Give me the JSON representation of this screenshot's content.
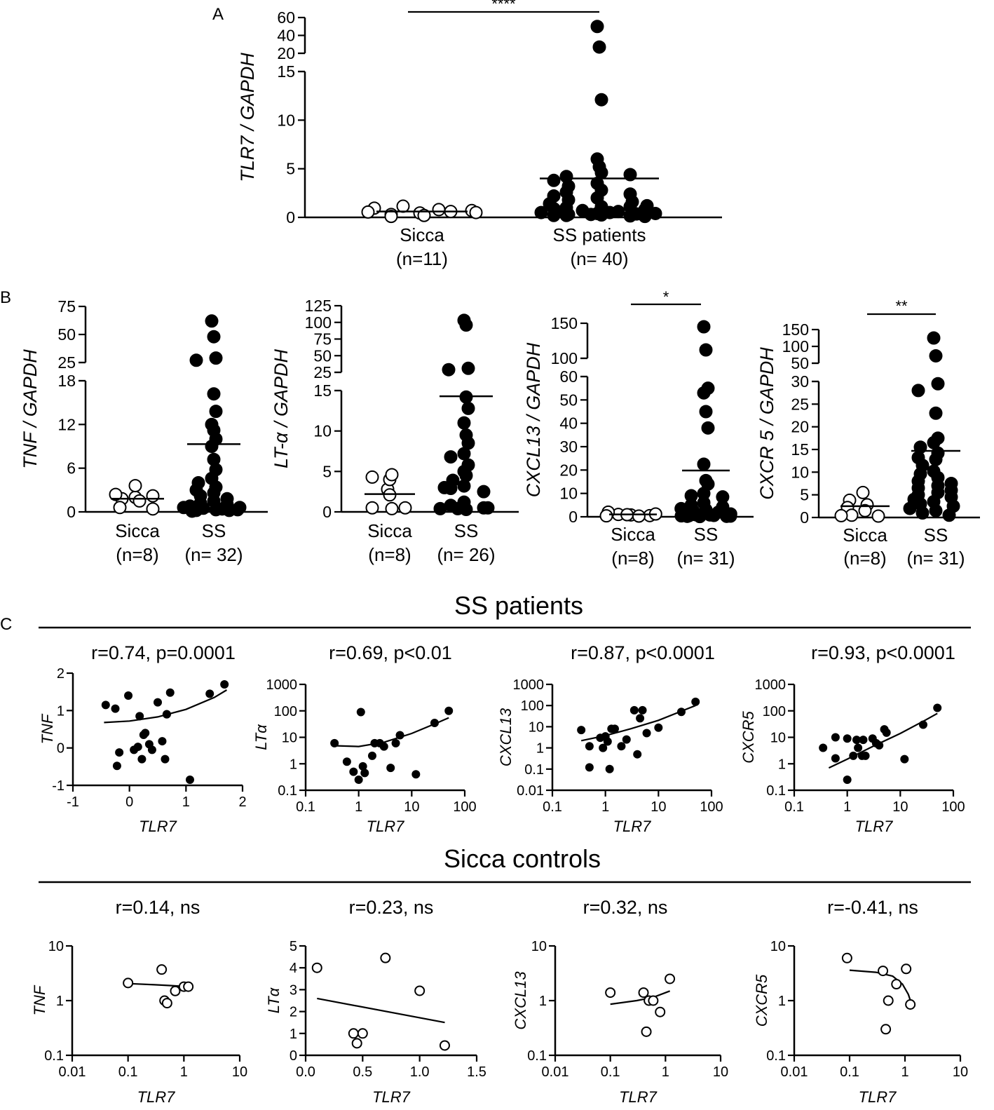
{
  "panel_labels": {
    "A": "A",
    "B": "B",
    "C": "C"
  },
  "sections": {
    "ss_title": "SS patients",
    "sicca_title": "Sicca controls"
  },
  "chart_data": [
    {
      "id": "A",
      "type": "scatter",
      "subtype": "dot-plot-mean",
      "ylabel": "TLR7 / GAPDH",
      "ytick_labels": [
        "0",
        "5",
        "10",
        "15",
        "20",
        "40",
        "60"
      ],
      "ytick_values": [
        0,
        5,
        10,
        15,
        20,
        40,
        60
      ],
      "y_break": {
        "low_max": 15,
        "high_min": 20,
        "high_max": 60
      },
      "significance": "****",
      "groups": [
        {
          "name": "Sicca",
          "n_label": "(n=11)",
          "marker": "open",
          "mean": 0.6,
          "values": [
            0.45,
            0.3,
            0.2,
            0.6,
            0.95,
            0.7,
            1.15,
            0.8,
            0.55,
            0.5,
            0.1
          ]
        },
        {
          "name": "SS patients",
          "n_label": "(n= 40)",
          "marker": "filled",
          "mean": 4.0,
          "values": [
            50,
            27,
            12.1,
            6.0,
            5.2,
            4.6,
            4.2,
            4.4,
            3.8,
            3.5,
            3.2,
            2.8,
            2.6,
            2.4,
            2.2,
            2.0,
            1.8,
            1.6,
            1.4,
            1.2,
            1.1,
            1.0,
            1.1,
            0.9,
            0.8,
            0.7,
            0.6,
            0.5,
            0.4,
            0.6,
            0.35,
            0.3,
            0.25,
            0.2,
            0.15,
            0.5,
            0.4,
            0.3,
            0.2,
            0.1
          ]
        }
      ]
    },
    {
      "id": "B1",
      "type": "scatter",
      "subtype": "dot-plot-mean",
      "ylabel": "TNF / GAPDH",
      "ytick_labels": [
        "0",
        "6",
        "12",
        "18",
        "25",
        "50",
        "75"
      ],
      "ytick_values": [
        0,
        6,
        12,
        18,
        25,
        50,
        75
      ],
      "y_break": {
        "low_max": 18,
        "high_min": 25,
        "high_max": 75
      },
      "significance": "",
      "groups": [
        {
          "name": "Sicca",
          "n_label": "(n=8)",
          "marker": "open",
          "mean": 1.8,
          "values": [
            2.0,
            1.8,
            1.5,
            3.6,
            2.2,
            2.4,
            0.6,
            0.4
          ]
        },
        {
          "name": "SS",
          "n_label": "(n= 32)",
          "marker": "filled",
          "mean": 9.3,
          "values": [
            62,
            48,
            29,
            27,
            16.2,
            13.8,
            12.0,
            11.2,
            10.0,
            9.0,
            7.2,
            5.8,
            4.6,
            4.0,
            3.4,
            3.0,
            2.6,
            2.2,
            1.8,
            1.5,
            1.2,
            1.0,
            0.8,
            0.6,
            0.5,
            0.4,
            0.3,
            0.2,
            0.2,
            0.1,
            0.6,
            0.3
          ]
        }
      ]
    },
    {
      "id": "B2",
      "type": "scatter",
      "subtype": "dot-plot-mean",
      "ylabel": "LT-α / GAPDH",
      "ytick_labels": [
        "0",
        "5",
        "10",
        "15",
        "25",
        "50",
        "75",
        "100",
        "125"
      ],
      "ytick_values": [
        0,
        5,
        10,
        15,
        25,
        50,
        75,
        100,
        125
      ],
      "y_break": {
        "low_max": 15,
        "high_min": 25,
        "high_max": 125
      },
      "significance": "",
      "groups": [
        {
          "name": "Sicca",
          "n_label": "(n=8)",
          "marker": "open",
          "mean": 2.2,
          "values": [
            2.8,
            4.0,
            4.6,
            4.3,
            2.1,
            0.4,
            0.5,
            0.5
          ]
        },
        {
          "name": "SS",
          "n_label": "(n= 26)",
          "marker": "filled",
          "mean": 14.3,
          "values": [
            103,
            96,
            31,
            29,
            14.2,
            12.8,
            11.0,
            9.5,
            8.5,
            7.2,
            6.8,
            5.8,
            5.0,
            4.5,
            3.9,
            3.2,
            2.9,
            2.5,
            1.2,
            0.8,
            0.5,
            0.4,
            0.3,
            3.0,
            0.5,
            0.4
          ]
        }
      ]
    },
    {
      "id": "B3",
      "type": "scatter",
      "subtype": "dot-plot-mean",
      "ylabel": "CXCL13 / GAPDH",
      "ytick_labels": [
        "0",
        "10",
        "20",
        "30",
        "40",
        "50",
        "60",
        "100",
        "150"
      ],
      "ytick_values": [
        0,
        10,
        20,
        30,
        40,
        50,
        60,
        100,
        150
      ],
      "y_break": {
        "low_max": 60,
        "high_min": 100,
        "high_max": 150
      },
      "significance": "*",
      "groups": [
        {
          "name": "Sicca",
          "n_label": "(n=8)",
          "marker": "open",
          "mean": 1.0,
          "values": [
            0.8,
            1.0,
            0.5,
            2.0,
            1.2,
            0.9,
            0.3,
            0.4
          ]
        },
        {
          "name": "SS",
          "n_label": "(n= 31)",
          "marker": "filled",
          "mean": 19.8,
          "values": [
            145,
            112,
            55,
            53,
            45,
            38,
            22.5,
            15.5,
            14.0,
            10.0,
            9.0,
            8.5,
            6.0,
            5.0,
            4.2,
            3.5,
            3.0,
            2.5,
            2.0,
            1.6,
            1.2,
            0.9,
            0.6,
            0.4,
            0.3,
            0.2,
            0.2,
            0.1,
            0.8,
            1.5,
            0.5
          ]
        }
      ]
    },
    {
      "id": "B4",
      "type": "scatter",
      "subtype": "dot-plot-mean",
      "ylabel": "CXCR 5 / GAPDH",
      "ytick_labels": [
        "0",
        "5",
        "10",
        "15",
        "20",
        "25",
        "30",
        "50",
        "100",
        "150"
      ],
      "ytick_values": [
        0,
        5,
        10,
        15,
        20,
        25,
        30,
        50,
        100,
        150
      ],
      "y_break": {
        "low_max": 30,
        "high_min": 50,
        "high_max": 150
      },
      "significance": "**",
      "groups": [
        {
          "name": "Sicca",
          "n_label": "(n=8)",
          "marker": "open",
          "mean": 2.5,
          "values": [
            5.5,
            3.8,
            2.8,
            2.2,
            1.5,
            0.5,
            0.3,
            0.4
          ]
        },
        {
          "name": "SS",
          "n_label": "(n= 31)",
          "marker": "filled",
          "mean": 14.7,
          "values": [
            125,
            72,
            29.5,
            28.0,
            23.0,
            17.5,
            16.5,
            15.5,
            14.2,
            13.2,
            12.8,
            11.5,
            10.2,
            9.6,
            8.8,
            8.0,
            7.5,
            7.0,
            6.5,
            6.0,
            5.5,
            5.0,
            4.5,
            4.0,
            3.5,
            3.0,
            2.5,
            2.0,
            1.5,
            1.0,
            0.5
          ]
        }
      ]
    },
    {
      "id": "C1",
      "type": "scatter",
      "group": "SS patients",
      "stat": "r=0.74, p=0.0001",
      "xlabel": "TLR7",
      "ylabel": "TNF",
      "xscale": "linear",
      "yscale": "linear",
      "xlim": [
        -1,
        2
      ],
      "ylim": [
        -1,
        2
      ],
      "xtick_labels": [
        "-1",
        "0",
        "1",
        "2"
      ],
      "ytick_labels": [
        "-1",
        "0",
        "1",
        "2"
      ],
      "marker": "filled",
      "x": [
        -0.42,
        -0.25,
        -0.18,
        -0.02,
        0.08,
        0.15,
        0.18,
        0.25,
        0.22,
        0.28,
        0.35,
        0.4,
        0.5,
        0.58,
        0.63,
        0.66,
        0.72,
        1.07,
        1.42,
        1.68,
        0.66,
        -0.22
      ],
      "y": [
        1.15,
        1.05,
        -0.12,
        1.4,
        -0.05,
        0.03,
        0.85,
        0.35,
        -0.3,
        0.4,
        0.1,
        -0.05,
        1.22,
        0.18,
        -0.3,
        0.9,
        1.48,
        -0.85,
        1.45,
        1.7,
        0.9,
        -0.48
      ],
      "fit_x": [
        -0.45,
        0.0,
        0.5,
        1.0,
        1.5,
        1.72
      ],
      "fit_y": [
        0.68,
        0.72,
        0.83,
        1.03,
        1.35,
        1.55
      ]
    },
    {
      "id": "C2",
      "type": "scatter",
      "group": "SS patients",
      "stat": "r=0.69, p<0.01",
      "xlabel": "TLR7",
      "ylabel": "LTα",
      "xscale": "log",
      "yscale": "log",
      "xlim": [
        0.1,
        100
      ],
      "ylim": [
        0.1,
        1000
      ],
      "xtick_labels": [
        "0.1",
        "1",
        "10",
        "100"
      ],
      "ytick_labels": [
        "0.1",
        "1",
        "10",
        "100",
        "1000"
      ],
      "marker": "filled",
      "x": [
        0.35,
        0.6,
        0.8,
        1.0,
        1.1,
        1.2,
        1.3,
        1.8,
        2.0,
        2.5,
        3.0,
        4.0,
        5.0,
        6.0,
        12.0,
        27.0,
        50.0
      ],
      "y": [
        6.0,
        1.2,
        0.5,
        0.25,
        90.0,
        0.8,
        0.45,
        2.0,
        6.0,
        6.0,
        4.5,
        0.7,
        6.0,
        12.0,
        0.4,
        35.0,
        100.0
      ],
      "fit_x": [
        0.35,
        1.0,
        3.0,
        10.0,
        30.0,
        50.0
      ],
      "fit_y": [
        4.8,
        4.5,
        6.5,
        14.0,
        35.0,
        55.0
      ]
    },
    {
      "id": "C3",
      "type": "scatter",
      "group": "SS patients",
      "stat": "r=0.87, p<0.0001",
      "xlabel": "TLR7",
      "ylabel": "CXCL13",
      "xscale": "log",
      "yscale": "log",
      "xlim": [
        0.1,
        100
      ],
      "ylim": [
        0.01,
        1000
      ],
      "xtick_labels": [
        "0.1",
        "1",
        "10",
        "100"
      ],
      "ytick_labels": [
        "0.01",
        "0.1",
        "1",
        "10",
        "100",
        "1000"
      ],
      "marker": "filled",
      "x": [
        0.35,
        0.5,
        0.5,
        0.8,
        0.9,
        1.0,
        1.1,
        1.2,
        1.3,
        1.5,
        2.0,
        2.5,
        3.5,
        4.0,
        4.5,
        5.0,
        6.0,
        10.0,
        27.0,
        50.0
      ],
      "y": [
        7.0,
        1.2,
        0.12,
        3.0,
        1.0,
        3.5,
        2.0,
        0.1,
        8.0,
        8.0,
        1.2,
        2.5,
        60.0,
        0.5,
        25.0,
        60.0,
        5.0,
        9.0,
        50.0,
        150.0
      ],
      "fit_x": [
        0.35,
        1.0,
        3.0,
        10.0,
        30.0,
        50.0
      ],
      "fit_y": [
        2.2,
        3.8,
        8.0,
        20.0,
        60.0,
        100.0
      ]
    },
    {
      "id": "C4",
      "type": "scatter",
      "group": "SS patients",
      "stat": "r=0.93, p<0.0001",
      "xlabel": "TLR7",
      "ylabel": "CXCR5",
      "xscale": "log",
      "yscale": "log",
      "xlim": [
        0.1,
        100
      ],
      "ylim": [
        0.1,
        1000
      ],
      "xtick_labels": [
        "0.1",
        "1",
        "10",
        "100"
      ],
      "ytick_labels": [
        "0.1",
        "1",
        "10",
        "100",
        "1000"
      ],
      "marker": "filled",
      "x": [
        0.35,
        0.6,
        0.6,
        1.0,
        1.0,
        1.3,
        1.5,
        1.6,
        1.9,
        2.0,
        2.2,
        3.0,
        3.5,
        4.0,
        5.0,
        5.5,
        12.0,
        27.0,
        50.0
      ],
      "y": [
        4.0,
        10.0,
        1.6,
        9.0,
        0.25,
        2.0,
        8.0,
        4.0,
        2.0,
        8.0,
        2.0,
        9.0,
        6.0,
        5.0,
        20.0,
        15.0,
        1.5,
        30.0,
        130.0
      ],
      "fit_x": [
        0.45,
        1.0,
        3.0,
        10.0,
        30.0,
        50.0
      ],
      "fit_y": [
        0.7,
        1.5,
        4.5,
        14.0,
        45.0,
        80.0
      ]
    },
    {
      "id": "D1",
      "type": "scatter",
      "group": "Sicca controls",
      "stat": "r=0.14, ns",
      "xlabel": "TLR7",
      "ylabel": "TNF",
      "xscale": "log",
      "yscale": "log",
      "xlim": [
        0.01,
        10
      ],
      "ylim": [
        0.1,
        10
      ],
      "xtick_labels": [
        "0.01",
        "0.1",
        "1",
        "10"
      ],
      "ytick_labels": [
        "0.1",
        "1",
        "10"
      ],
      "marker": "open",
      "x": [
        0.1,
        0.4,
        0.45,
        0.5,
        0.7,
        1.0,
        1.2
      ],
      "y": [
        2.1,
        3.7,
        1.0,
        0.9,
        1.5,
        1.8,
        1.8
      ],
      "fit_x": [
        0.1,
        0.3,
        0.6,
        1.2
      ],
      "fit_y": [
        2.05,
        1.95,
        1.88,
        1.8
      ]
    },
    {
      "id": "D2",
      "type": "scatter",
      "group": "Sicca controls",
      "stat": "r=0.23, ns",
      "xlabel": "TLR7",
      "ylabel": "LTα",
      "xscale": "linear",
      "yscale": "linear",
      "xlim": [
        0,
        1.5
      ],
      "ylim": [
        0,
        5
      ],
      "xtick_labels": [
        "0.0",
        "0.5",
        "1.0",
        "1.5"
      ],
      "ytick_labels": [
        "0",
        "1",
        "2",
        "3",
        "4",
        "5"
      ],
      "marker": "open",
      "x": [
        0.1,
        0.42,
        0.45,
        0.5,
        0.7,
        1.0,
        1.22
      ],
      "y": [
        4.0,
        1.0,
        0.55,
        1.0,
        4.45,
        2.95,
        0.45
      ],
      "fit_x": [
        0.1,
        1.22
      ],
      "fit_y": [
        2.6,
        1.5
      ]
    },
    {
      "id": "D3",
      "type": "scatter",
      "group": "Sicca controls",
      "stat": "r=0.32, ns",
      "xlabel": "TLR7",
      "ylabel": "CXCL13",
      "xscale": "log",
      "yscale": "log",
      "xlim": [
        0.01,
        10
      ],
      "ylim": [
        0.1,
        10
      ],
      "xtick_labels": [
        "0.01",
        "0.1",
        "1",
        "10"
      ],
      "ytick_labels": [
        "0.1",
        "1",
        "10"
      ],
      "marker": "open",
      "x": [
        0.1,
        0.4,
        0.45,
        0.5,
        0.6,
        0.8,
        1.2
      ],
      "y": [
        1.4,
        1.4,
        0.27,
        1.0,
        1.0,
        0.62,
        2.5
      ],
      "fit_x": [
        0.1,
        0.3,
        0.6,
        1.2
      ],
      "fit_y": [
        0.86,
        1.0,
        1.15,
        1.5
      ]
    },
    {
      "id": "D4",
      "type": "scatter",
      "group": "Sicca controls",
      "stat": "r=-0.41, ns",
      "xlabel": "TLR7",
      "ylabel": "CXCR5",
      "xscale": "log",
      "yscale": "log",
      "xlim": [
        0.01,
        10
      ],
      "ylim": [
        0.1,
        10
      ],
      "xtick_labels": [
        "0.01",
        "0.1",
        "1",
        "10"
      ],
      "ytick_labels": [
        "0.1",
        "1",
        "10"
      ],
      "marker": "open",
      "x": [
        0.09,
        0.4,
        0.45,
        0.5,
        0.7,
        1.05,
        1.25
      ],
      "y": [
        6.0,
        3.5,
        0.3,
        1.0,
        2.0,
        3.8,
        0.85
      ],
      "fit_x": [
        0.1,
        0.3,
        0.6,
        0.9,
        1.15,
        1.3
      ],
      "fit_y": [
        3.6,
        3.3,
        2.8,
        2.0,
        1.3,
        0.9
      ]
    }
  ]
}
